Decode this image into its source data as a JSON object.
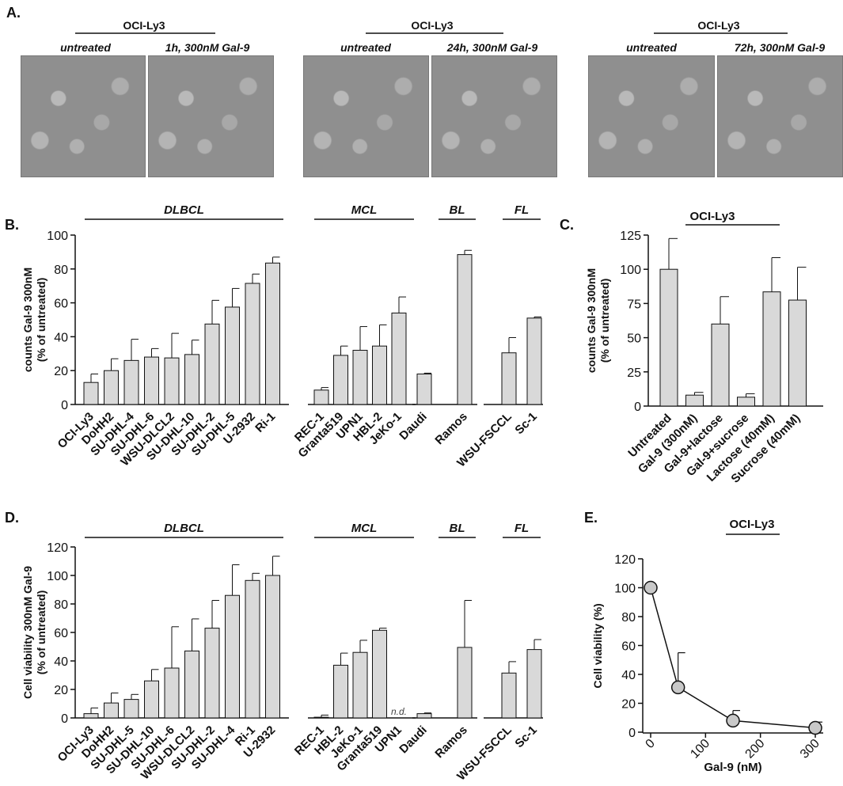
{
  "panel_labels": [
    "A.",
    "B.",
    "C.",
    "D.",
    "E."
  ],
  "panel_a": {
    "groups": [
      {
        "cell_line": "OCI-Ly3",
        "left": "untreated",
        "right": "1h, 300nM Gal-9"
      },
      {
        "cell_line": "OCI-Ly3",
        "left": "untreated",
        "right": "24h, 300nM Gal-9"
      },
      {
        "cell_line": "OCI-Ly3",
        "left": "untreated",
        "right": "72h, 300nM Gal-9"
      }
    ]
  },
  "chart_data": [
    {
      "id": "B",
      "type": "bar",
      "ylabel": "counts Gal-9 300nM\n(% of untreated)",
      "ylim": [
        0,
        100
      ],
      "yticks": [
        0,
        20,
        40,
        60,
        80,
        100
      ],
      "groups": [
        {
          "name": "DLBCL",
          "categories": [
            "OCI-Ly3",
            "DoHH2",
            "SU-DHL-4",
            "SU-DHL-6",
            "WSU-DLCL2",
            "SU-DHL-10",
            "SU-DHL-2",
            "SU-DHL-5",
            "U-2932",
            "Ri-1"
          ],
          "values": [
            13,
            20,
            26,
            28,
            27.5,
            29.5,
            47.5,
            57.5,
            71.5,
            83.5
          ],
          "errors": [
            5,
            7,
            12.5,
            5,
            14.5,
            8.5,
            14,
            11,
            5.5,
            3.5
          ]
        },
        {
          "name": "MCL",
          "categories": [
            "REC-1",
            "Granta519",
            "UPN1",
            "HBL-2",
            "JeKo-1"
          ],
          "values": [
            8.5,
            29,
            32,
            34.5,
            54
          ],
          "errors": [
            1.5,
            5.5,
            14,
            12.5,
            9.5
          ]
        },
        {
          "name": "BL",
          "categories": [
            "Daudi",
            "Ramos"
          ],
          "values": [
            18,
            88.5
          ],
          "errors": [
            0.5,
            2.5
          ]
        },
        {
          "name": "FL",
          "categories": [
            "WSU-FSCCL",
            "Sc-1"
          ],
          "values": [
            30.5,
            51
          ],
          "errors": [
            9,
            0.7
          ]
        }
      ]
    },
    {
      "id": "C",
      "type": "bar",
      "title": "OCI-Ly3",
      "ylabel": "counts Gal-9 300nM\n(% of untreated)",
      "ylim": [
        0,
        125
      ],
      "yticks": [
        0,
        25,
        50,
        75,
        100,
        125
      ],
      "categories": [
        "Untreated",
        "Gal-9 (300nM)",
        "Gal-9+lactose",
        "Gal-9+sucrose",
        "Lactose (40mM)",
        "Sucrose (40mM)"
      ],
      "values": [
        100,
        8,
        60,
        6.5,
        83.5,
        77.5
      ],
      "errors": [
        22.5,
        2,
        20,
        2.5,
        25,
        24
      ]
    },
    {
      "id": "D",
      "type": "bar",
      "ylabel": "Cell viability 300nM Gal-9\n(% of untreated)",
      "ylim": [
        0,
        120
      ],
      "yticks": [
        0,
        20,
        40,
        60,
        80,
        100,
        120
      ],
      "na_label": "n.d.",
      "groups": [
        {
          "name": "DLBCL",
          "categories": [
            "OCI-Ly3",
            "DoHH2",
            "SU-DHL-5",
            "SU-DHL-10",
            "SU-DHL-6",
            "WSU-DLCL2",
            "SU-DHL-2",
            "SU-DHL-4",
            "Ri-1",
            "U-2932"
          ],
          "values": [
            3,
            10.5,
            13,
            26,
            35,
            47,
            63,
            86,
            96.5,
            100
          ],
          "errors": [
            4,
            7,
            3.5,
            8,
            29,
            22.5,
            19.5,
            21.5,
            5,
            13.5
          ]
        },
        {
          "name": "MCL",
          "categories": [
            "REC-1",
            "HBL-2",
            "JeKo-1",
            "Granta519",
            "UPN1"
          ],
          "values": [
            0.5,
            37,
            46,
            61.5,
            null
          ],
          "errors": [
            1.5,
            8.5,
            8.5,
            1.5,
            null
          ]
        },
        {
          "name": "BL",
          "categories": [
            "Daudi",
            "Ramos"
          ],
          "values": [
            3,
            49.5
          ],
          "errors": [
            0.5,
            33
          ]
        },
        {
          "name": "FL",
          "categories": [
            "WSU-FSCCL",
            "Sc-1"
          ],
          "values": [
            31.5,
            48
          ],
          "errors": [
            8,
            7
          ]
        }
      ]
    },
    {
      "id": "E",
      "type": "line",
      "title": "OCI-Ly3",
      "xlabel": "Gal-9 (nM)",
      "ylabel": "Cell viability (%)",
      "xlim": [
        0,
        300
      ],
      "ylim": [
        0,
        120
      ],
      "xticks": [
        0,
        100,
        200,
        300
      ],
      "yticks": [
        0,
        20,
        40,
        60,
        80,
        100,
        120
      ],
      "x": [
        0,
        50,
        150,
        300
      ],
      "y": [
        100,
        31,
        8,
        3
      ],
      "errors": [
        0,
        24,
        7,
        4
      ]
    }
  ],
  "colors": {
    "bar_fill": "#d9d9d9",
    "stroke": "#111111",
    "marker_fill": "#c8c8c8"
  }
}
